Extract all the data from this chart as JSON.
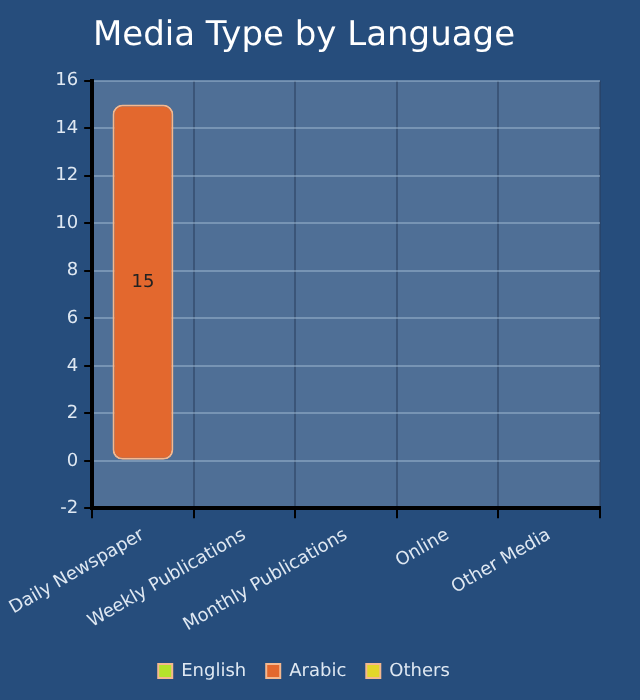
{
  "chart_data": {
    "type": "bar",
    "title": "Media Type by Language",
    "categories": [
      "Daily Newspaper",
      "Weekly Publications",
      "Monthly Publications",
      "Online",
      "Other Media"
    ],
    "stacked": true,
    "series": [
      {
        "name": "English",
        "color": "#b5e32a",
        "values": [
          null,
          null,
          null,
          null,
          null
        ]
      },
      {
        "name": "Arabic",
        "color": "#e3682e",
        "values": [
          15,
          null,
          null,
          null,
          null
        ],
        "value_labels": [
          "15",
          null,
          null,
          null,
          null
        ]
      },
      {
        "name": "Others",
        "color": "#e3d62a",
        "values": [
          null,
          null,
          null,
          null,
          null
        ]
      }
    ],
    "ylim": [
      -2,
      16
    ],
    "yticks": [
      -2,
      0,
      2,
      4,
      6,
      8,
      10,
      12,
      14,
      16
    ],
    "grid": true,
    "legend": "bottom"
  }
}
